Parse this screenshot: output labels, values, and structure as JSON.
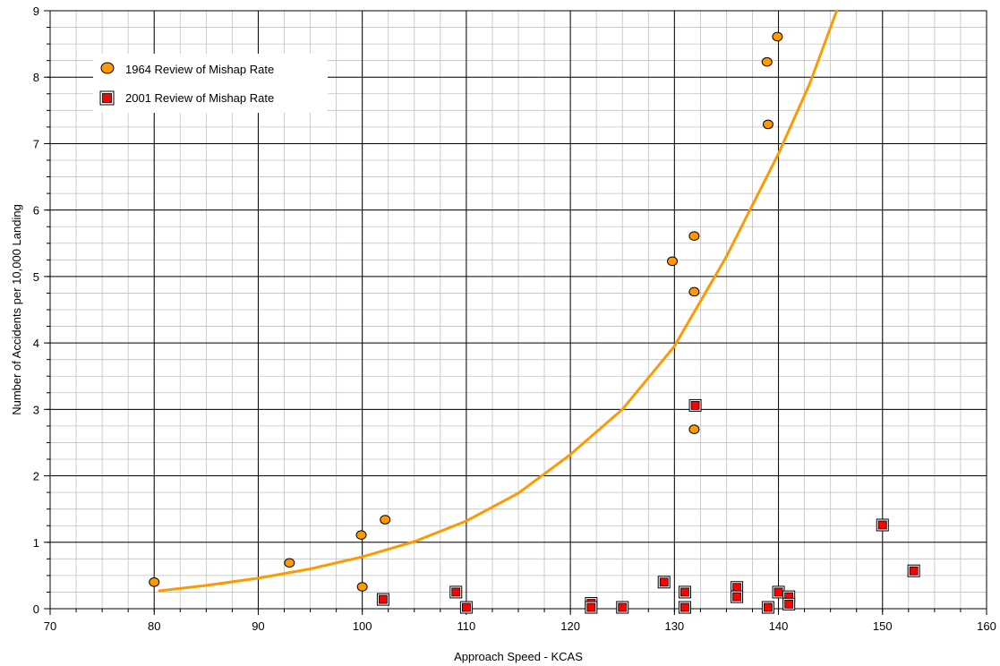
{
  "chart_data": {
    "type": "scatter",
    "title": "",
    "xlabel": "Approach Speed - KCAS",
    "ylabel": "Number of Accidents per 10,000 Landing",
    "xlim": [
      70,
      160
    ],
    "ylim": [
      0,
      9
    ],
    "xticks": [
      70,
      80,
      90,
      100,
      110,
      120,
      130,
      140,
      150,
      160
    ],
    "yticks": [
      0,
      1,
      2,
      3,
      4,
      5,
      6,
      7,
      8,
      9
    ],
    "grid": true,
    "legend_position": "top-left",
    "series": [
      {
        "name": "1964 Review of Mishap Rate",
        "marker": "circle",
        "color": "#ff9900",
        "points": [
          [
            80.0,
            0.4
          ],
          [
            93.0,
            0.69
          ],
          [
            99.9,
            1.11
          ],
          [
            100.0,
            0.33
          ],
          [
            102.2,
            1.34
          ],
          [
            129.8,
            5.23
          ],
          [
            131.9,
            5.61
          ],
          [
            131.9,
            4.77
          ],
          [
            131.9,
            2.7
          ],
          [
            138.9,
            8.23
          ],
          [
            139.0,
            7.29
          ],
          [
            139.9,
            8.61
          ]
        ]
      },
      {
        "name": "2001 Review of Mishap Rate",
        "marker": "square",
        "color": "#ff0000",
        "points": [
          [
            102.0,
            0.14
          ],
          [
            109.0,
            0.25
          ],
          [
            110.0,
            0.02
          ],
          [
            122.0,
            0.08
          ],
          [
            122.0,
            0.02
          ],
          [
            125.0,
            0.02
          ],
          [
            129.0,
            0.4
          ],
          [
            131.0,
            0.25
          ],
          [
            131.0,
            0.02
          ],
          [
            132.0,
            3.06
          ],
          [
            136.0,
            0.32
          ],
          [
            136.0,
            0.18
          ],
          [
            139.0,
            0.02
          ],
          [
            140.0,
            0.25
          ],
          [
            141.0,
            0.18
          ],
          [
            141.0,
            0.07
          ],
          [
            150.0,
            1.26
          ],
          [
            153.0,
            0.57
          ]
        ]
      },
      {
        "marker": "line",
        "color": "#ff9900",
        "points": [
          [
            80.5,
            0.27
          ],
          [
            85,
            0.35
          ],
          [
            90,
            0.46
          ],
          [
            95,
            0.6
          ],
          [
            100,
            0.78
          ],
          [
            105,
            1.01
          ],
          [
            110,
            1.32
          ],
          [
            115,
            1.74
          ],
          [
            120,
            2.32
          ],
          [
            125,
            3.0
          ],
          [
            130,
            3.95
          ],
          [
            135,
            5.3
          ],
          [
            140,
            6.85
          ],
          [
            143,
            7.9
          ],
          [
            145.6,
            9.0
          ]
        ]
      }
    ]
  }
}
